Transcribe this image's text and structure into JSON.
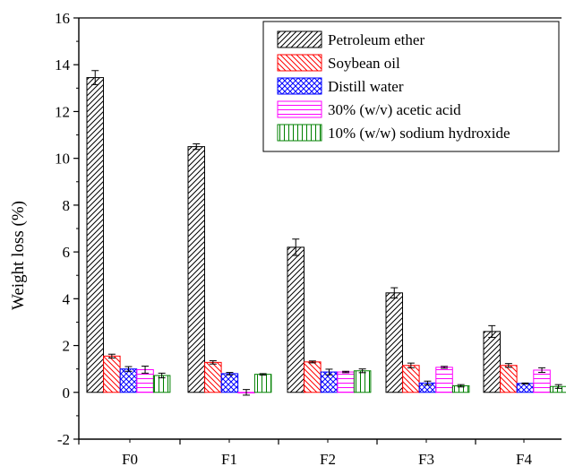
{
  "chart_data": {
    "type": "bar",
    "title": "",
    "xlabel": "",
    "ylabel": "Weight loss (%)",
    "ylim": [
      -2,
      16
    ],
    "yticks": [
      -2,
      0,
      2,
      4,
      6,
      8,
      10,
      12,
      14,
      16
    ],
    "categories": [
      "F0",
      "F1",
      "F2",
      "F3",
      "F4"
    ],
    "legend_position": "top-right",
    "grid": false,
    "series": [
      {
        "name": "Petroleum ether",
        "values": [
          13.45,
          10.5,
          6.2,
          4.25,
          2.6
        ],
        "errors": [
          0.3,
          0.12,
          0.35,
          0.22,
          0.25
        ],
        "color": "#000000",
        "pattern": "diagonal-forward"
      },
      {
        "name": "Soybean oil",
        "values": [
          1.55,
          1.28,
          1.3,
          1.15,
          1.15
        ],
        "errors": [
          0.08,
          0.07,
          0.04,
          0.1,
          0.08
        ],
        "color": "#ff0000",
        "pattern": "diagonal-backward"
      },
      {
        "name": "Distill water",
        "values": [
          1.0,
          0.8,
          0.87,
          0.4,
          0.38
        ],
        "errors": [
          0.1,
          0.05,
          0.12,
          0.08,
          0.02
        ],
        "color": "#0000ff",
        "pattern": "crosshatch"
      },
      {
        "name": "30% (w/v) acetic acid",
        "values": [
          0.97,
          0.0,
          0.87,
          1.07,
          0.95
        ],
        "errors": [
          0.15,
          0.12,
          0.03,
          0.04,
          0.1
        ],
        "color": "#ff00ff",
        "pattern": "horizontal"
      },
      {
        "name": "10% (w/w) sodium hydroxide",
        "values": [
          0.72,
          0.77,
          0.92,
          0.28,
          0.25
        ],
        "errors": [
          0.1,
          0.03,
          0.08,
          0.05,
          0.08
        ],
        "color": "#008000",
        "pattern": "vertical"
      }
    ]
  }
}
